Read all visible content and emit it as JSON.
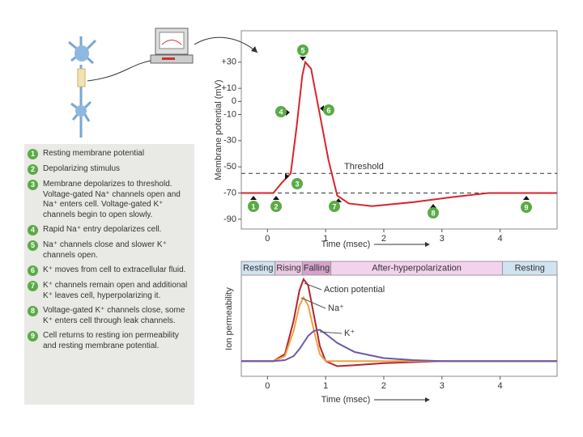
{
  "chart_data": [
    {
      "type": "line",
      "ylabel": "Membrane potential (mV)",
      "xlabel": "Time (msec)",
      "color": "#d7262b",
      "xlim": [
        -0.45,
        4.98
      ],
      "xticks": [
        0,
        1,
        2,
        3,
        4
      ],
      "ylim": [
        -97.5,
        54
      ],
      "yticks": [
        {
          "value": 30,
          "label": "+30"
        },
        {
          "value": 10,
          "label": "+10"
        },
        0,
        -10,
        -30,
        -50,
        -70,
        -90
      ],
      "x": [
        -0.45,
        0.1,
        0.25,
        0.4,
        0.5,
        0.6,
        0.65,
        0.75,
        0.9,
        1.05,
        1.2,
        1.4,
        1.8,
        2.5,
        3.2,
        3.8,
        4.98
      ],
      "values": [
        -70,
        -70,
        -62,
        -55,
        -20,
        20,
        30,
        25,
        -10,
        -45,
        -72,
        -78,
        -80,
        -77,
        -73,
        -70,
        -70
      ],
      "reference_lines": [
        {
          "value": -55,
          "label": "Threshold"
        },
        {
          "value": -70
        }
      ],
      "markers": [
        "1",
        "2",
        "3",
        "4",
        "5",
        "6",
        "7",
        "8",
        "9"
      ]
    },
    {
      "type": "line",
      "ylabel": "Ion permeability",
      "xlabel": "Time (msec)",
      "xlim": [
        -0.45,
        4.98
      ],
      "xticks": [
        0,
        1,
        2,
        3,
        4
      ],
      "ylim": [
        0,
        1
      ],
      "phases": [
        {
          "label": "Resting",
          "start": -0.45,
          "end": 0.13,
          "color": "#cfe3f1"
        },
        {
          "label": "Rising",
          "start": 0.13,
          "end": 0.6,
          "color": "#ecc8e4"
        },
        {
          "label": "Falling",
          "start": 0.6,
          "end": 1.09,
          "color": "#d6a3cd"
        },
        {
          "label": "After-hyperpolarization",
          "start": 1.09,
          "end": 4.04,
          "color": "#f3d2ee"
        },
        {
          "label": "Resting",
          "start": 4.04,
          "end": 4.98,
          "color": "#cfe3f1"
        }
      ],
      "x": [
        -0.45,
        0.1,
        0.3,
        0.45,
        0.55,
        0.62,
        0.7,
        0.8,
        0.9,
        1.0,
        1.2,
        1.5,
        2.0,
        2.5,
        3.0,
        4.98
      ],
      "series": [
        {
          "name": "Action potential",
          "color": "#b3262d",
          "values": [
            0.15,
            0.15,
            0.22,
            0.55,
            0.85,
            0.96,
            0.9,
            0.6,
            0.3,
            0.15,
            0.1,
            0.11,
            0.13,
            0.14,
            0.15,
            0.15
          ]
        },
        {
          "name": "Na⁺",
          "color": "#f0a040",
          "values": [
            0.15,
            0.15,
            0.2,
            0.45,
            0.7,
            0.78,
            0.7,
            0.45,
            0.22,
            0.15,
            0.15,
            0.15,
            0.15,
            0.15,
            0.15,
            0.15
          ]
        },
        {
          "name": "K⁺",
          "color": "#6a5aa8",
          "values": [
            0.15,
            0.15,
            0.16,
            0.2,
            0.27,
            0.33,
            0.4,
            0.45,
            0.46,
            0.42,
            0.33,
            0.24,
            0.18,
            0.16,
            0.15,
            0.15
          ]
        }
      ]
    }
  ],
  "steps": [
    {
      "number": "1",
      "text": "Resting membrane potential"
    },
    {
      "number": "2",
      "text": "Depolarizing stimulus"
    },
    {
      "number": "3",
      "text": "Membrane depolarizes to threshold. Voltage-gated Na⁺ channels open and Na⁺ enters cell. Voltage-gated K⁺ channels begin to open slowly."
    },
    {
      "number": "4",
      "text": "Rapid Na⁺ entry depolarizes cell."
    },
    {
      "number": "5",
      "text": "Na⁺ channels close and slower K⁺ channels open."
    },
    {
      "number": "6",
      "text": "K⁺ moves from cell to extracellular fluid."
    },
    {
      "number": "7",
      "text": "K⁺ channels remain open and additional K⁺ leaves cell, hyperpolarizing it."
    },
    {
      "number": "8",
      "text": "Voltage-gated K⁺ channels close, some K⁺ enters cell through leak channels."
    },
    {
      "number": "9",
      "text": "Cell returns to resting ion permeability and resting membrane potential."
    }
  ]
}
